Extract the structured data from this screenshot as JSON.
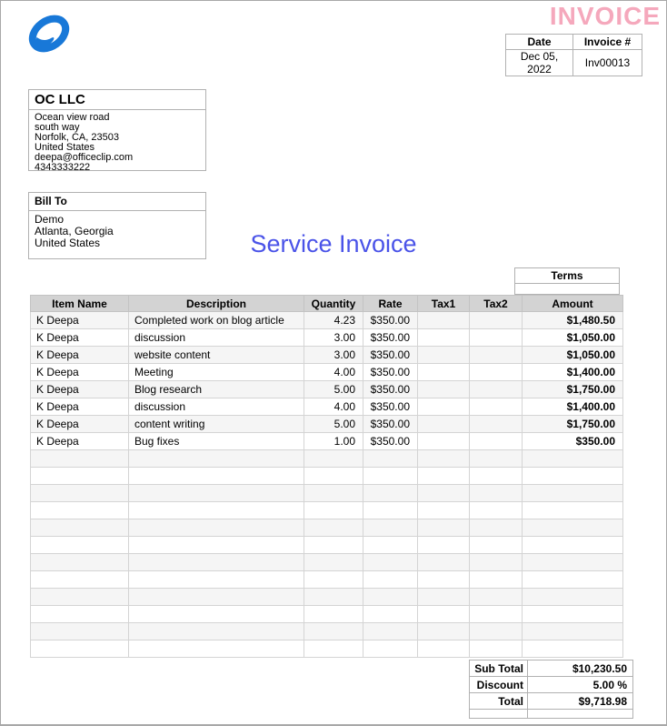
{
  "header": {
    "invoice_title": "INVOICE",
    "logo_icon": "officeclip-oval-swoosh"
  },
  "invoice_meta": {
    "date_label": "Date",
    "invoice_no_label": "Invoice #",
    "date_value": "Dec 05, 2022",
    "invoice_no_value": "Inv00013"
  },
  "company": {
    "name": "OC LLC",
    "address": "Ocean view road\nsouth way\nNorfolk, CA, 23503\nUnited States\ndeepa@officeclip.com\n4343333222"
  },
  "bill_to": {
    "label": "Bill To",
    "address": "Demo\nAtlanta, Georgia\nUnited States"
  },
  "doc_title": "Service Invoice",
  "terms": {
    "label": "Terms",
    "value": ""
  },
  "items_table": {
    "columns": [
      "Item Name",
      "Description",
      "Quantity",
      "Rate",
      "Tax1",
      "Tax2",
      "Amount"
    ],
    "rows": [
      {
        "item": "K Deepa",
        "description": "Completed work on blog article",
        "quantity": "4.23",
        "rate": "$350.00",
        "tax1": "",
        "tax2": "",
        "amount": "$1,480.50"
      },
      {
        "item": "K Deepa",
        "description": "discussion",
        "quantity": "3.00",
        "rate": "$350.00",
        "tax1": "",
        "tax2": "",
        "amount": "$1,050.00"
      },
      {
        "item": "K Deepa",
        "description": "website content",
        "quantity": "3.00",
        "rate": "$350.00",
        "tax1": "",
        "tax2": "",
        "amount": "$1,050.00"
      },
      {
        "item": "K Deepa",
        "description": "Meeting",
        "quantity": "4.00",
        "rate": "$350.00",
        "tax1": "",
        "tax2": "",
        "amount": "$1,400.00"
      },
      {
        "item": "K Deepa",
        "description": "Blog research",
        "quantity": "5.00",
        "rate": "$350.00",
        "tax1": "",
        "tax2": "",
        "amount": "$1,750.00"
      },
      {
        "item": "K Deepa",
        "description": "discussion",
        "quantity": "4.00",
        "rate": "$350.00",
        "tax1": "",
        "tax2": "",
        "amount": "$1,400.00"
      },
      {
        "item": "K Deepa",
        "description": "content writing",
        "quantity": "5.00",
        "rate": "$350.00",
        "tax1": "",
        "tax2": "",
        "amount": "$1,750.00"
      },
      {
        "item": "K Deepa",
        "description": "Bug fixes",
        "quantity": "1.00",
        "rate": "$350.00",
        "tax1": "",
        "tax2": "",
        "amount": "$350.00"
      }
    ],
    "empty_row_count": 12
  },
  "totals": {
    "rows": [
      {
        "label": "Sub Total",
        "value": "$10,230.50"
      },
      {
        "label": "Discount",
        "value": "5.00 %"
      },
      {
        "label": "Total",
        "value": "$9,718.98"
      }
    ]
  },
  "colors": {
    "invoice_title": "#f5a8bc",
    "doc_title": "#4a53e8",
    "logo_blue": "#1878d8",
    "table_header_bg": "#d3d3d3",
    "row_stripe": "#f5f5f5"
  }
}
